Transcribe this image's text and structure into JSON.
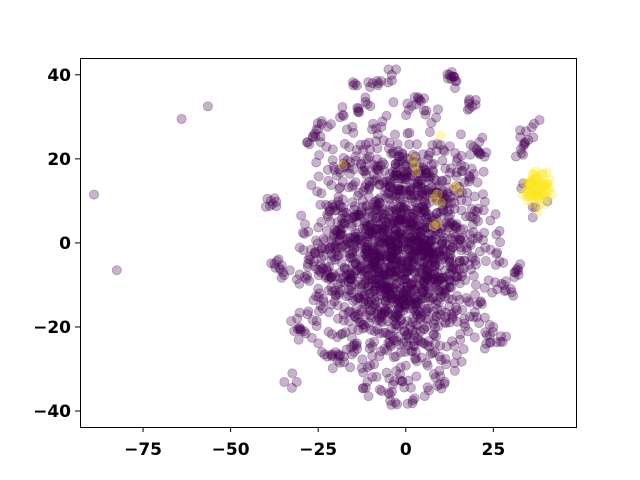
{
  "chart_data": {
    "type": "scatter",
    "title": "",
    "xlabel": "",
    "ylabel": "",
    "xlim": [
      -93,
      48.6
    ],
    "ylim": [
      -43.8,
      44
    ],
    "x_ticks": [
      -75,
      -50,
      -25,
      0,
      25
    ],
    "y_ticks": [
      -40,
      -20,
      0,
      20,
      40
    ],
    "x_tick_labels": [
      "−75",
      "−50",
      "−25",
      "0",
      "25"
    ],
    "y_tick_labels": [
      "−40",
      "−20",
      "0",
      "20",
      "40"
    ],
    "grid": false,
    "legend": false,
    "point_alpha": 0.3,
    "series": [
      {
        "color": "#440154",
        "note_cluster_center": [
          -2,
          -2
        ],
        "points": [
          [
            -89,
            11.5
          ],
          [
            -82.5,
            -6.5
          ],
          [
            -64,
            29.5
          ],
          [
            -56.5,
            32.5
          ],
          [
            -39.5,
            10.5
          ],
          [
            -38.5,
            10
          ],
          [
            -37.5,
            -5
          ],
          [
            -36,
            -6
          ],
          [
            -35,
            -7
          ],
          [
            -32.5,
            -34.5
          ],
          [
            -31,
            -18
          ],
          [
            -30,
            -20.5
          ],
          [
            -29,
            -21
          ],
          [
            -27.5,
            23.5
          ],
          [
            -26,
            26
          ],
          [
            -25,
            27
          ],
          [
            -24,
            29
          ],
          [
            -23.5,
            -14
          ],
          [
            -21,
            -27
          ],
          [
            -20,
            -26
          ],
          [
            -19.5,
            -28
          ],
          [
            -18,
            30.5
          ],
          [
            -15,
            37.5
          ],
          [
            -13.5,
            32
          ],
          [
            -11,
            33
          ],
          [
            -9.5,
            38
          ],
          [
            -7,
            38.5
          ],
          [
            -4,
            40
          ],
          [
            -4.5,
            -36
          ],
          [
            -3,
            -38
          ],
          [
            -1,
            -33
          ],
          [
            2,
            -37.5
          ],
          [
            3,
            33
          ],
          [
            4,
            34
          ],
          [
            8.5,
            -32
          ],
          [
            9,
            -34
          ],
          [
            12.5,
            40
          ],
          [
            13,
            39
          ],
          [
            14.5,
            38.5
          ],
          [
            19,
            32.5
          ],
          [
            20,
            34
          ],
          [
            20.5,
            22
          ],
          [
            21,
            24
          ],
          [
            22.5,
            20.5
          ],
          [
            23,
            -24
          ],
          [
            24,
            -22
          ],
          [
            25,
            -20
          ],
          [
            27,
            -23.5
          ],
          [
            28,
            -10
          ],
          [
            30,
            -11
          ],
          [
            31,
            -7
          ],
          [
            32,
            -6
          ],
          [
            33,
            13
          ],
          [
            33.5,
            21
          ],
          [
            34,
            23.5
          ],
          [
            35,
            24.5
          ],
          [
            36,
            27.5
          ],
          [
            37,
            8.5
          ]
        ]
      },
      {
        "color": "#fde725",
        "note_cluster_center": [
          37.5,
          13
        ],
        "points": [
          [
            34.5,
            12
          ],
          [
            35,
            14
          ],
          [
            35.5,
            11
          ],
          [
            36,
            15
          ],
          [
            36.5,
            13
          ],
          [
            37,
            10.5
          ],
          [
            37.5,
            16
          ],
          [
            38,
            12.5
          ],
          [
            38.5,
            14.5
          ],
          [
            39,
            11.5
          ],
          [
            39.5,
            13.5
          ],
          [
            40,
            12
          ],
          [
            40.5,
            14
          ],
          [
            41,
            13
          ],
          [
            36,
            9.5
          ],
          [
            38,
            9
          ],
          [
            39,
            16.5
          ],
          [
            37,
            17
          ],
          [
            2,
            20
          ],
          [
            2.5,
            18.5
          ],
          [
            3,
            17
          ],
          [
            8,
            10.5
          ],
          [
            9,
            11.5
          ],
          [
            10,
            9.5
          ],
          [
            14,
            13.5
          ],
          [
            15,
            12.5
          ],
          [
            -18,
            18.5
          ],
          [
            8,
            4
          ],
          [
            9,
            4.5
          ],
          [
            10,
            25.5
          ]
        ]
      }
    ]
  }
}
